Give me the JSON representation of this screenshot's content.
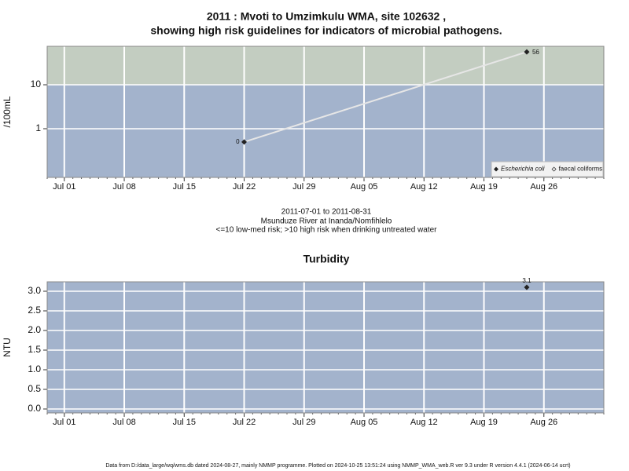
{
  "title": "2011 : Mvoti to Umzimkulu WMA, site 102632 ,",
  "subtitle": "showing high risk guidelines for indicators of microbial pathogens.",
  "caption": [
    "2011-07-01 to 2011-08-31",
    "Msunduze River at Inanda/Nomfihlelo",
    "<=10 low-med risk; >10 high risk when drinking untreated water"
  ],
  "footer": "Data from D:/data_large/wq/wms.db dated 2024-08-27, mainly NMMP programme. Plotted on 2024-10-25 13:51:24 using NMMP_WMA_web.R ver 9.3 under R version 4.4.1 (2024-06-14 ucrt)",
  "chart_data": [
    {
      "type": "line",
      "y_label": "/100mL",
      "log_y": true,
      "x": [
        "Jul 22",
        "Aug 24"
      ],
      "series": [
        {
          "name": "Escherichia coli",
          "color": "#222222",
          "values": [
            0.5,
            56
          ],
          "value_labels": [
            "0",
            "56"
          ]
        },
        {
          "name": "faecal coliforms",
          "color": "#222222",
          "values": [
            null,
            null
          ]
        }
      ],
      "line_color": "#e6e6e6",
      "xlim": [
        "Jun 29",
        "Sep 02"
      ],
      "xticks": [
        "Jul 01",
        "Jul 08",
        "Jul 15",
        "Jul 22",
        "Jul 29",
        "Aug 05",
        "Aug 12",
        "Aug 19",
        "Aug 26"
      ],
      "ylim": [
        0.078,
        75
      ],
      "yticks": [
        1,
        10
      ],
      "threshold": 10,
      "color_below": "#a3b3cc",
      "color_above": "#c3cdc1",
      "grid": true,
      "legend": "bottom right"
    },
    {
      "type": "line",
      "title": "Turbidity",
      "y_label": "NTU",
      "x": [
        "Aug 24"
      ],
      "series": [
        {
          "name": "Turbidity",
          "color": "#222222",
          "values": [
            3.1
          ]
        }
      ],
      "xlim": [
        "Jun 29",
        "Sep 02"
      ],
      "xticks": [
        "Jul 01",
        "Jul 08",
        "Jul 15",
        "Jul 22",
        "Jul 29",
        "Aug 05",
        "Aug 12",
        "Aug 19",
        "Aug 26"
      ],
      "ylim": [
        -0.1,
        3.24
      ],
      "yticks": [
        {
          "value": 0,
          "label": "0.0"
        },
        {
          "value": 0.5,
          "label": "0.5"
        },
        {
          "value": 1,
          "label": "1.0"
        },
        {
          "value": 1.5,
          "label": "1.5"
        },
        {
          "value": 2,
          "label": "2.0"
        },
        {
          "value": 2.5,
          "label": "2.5"
        },
        {
          "value": 3,
          "label": "3.0"
        }
      ],
      "background": "#a3b3cc",
      "grid": true
    }
  ]
}
